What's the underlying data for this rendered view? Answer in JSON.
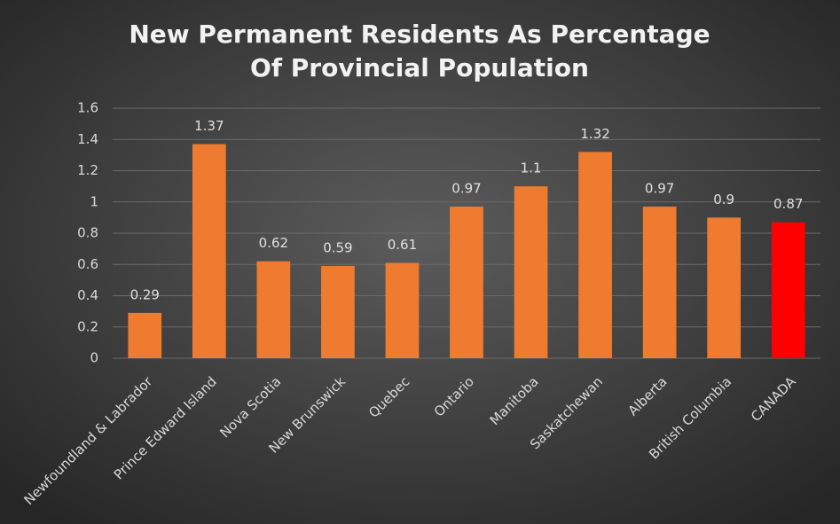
{
  "chart_data": {
    "type": "bar",
    "title": [
      "New Permanent Residents As Percentage",
      "Of Provincial Population"
    ],
    "categories": [
      "Newfoundland & Labrador",
      "Prince Edward Island",
      "Nova Scotia",
      "New Brunswick",
      "Quebec",
      "Ontario",
      "Manitoba",
      "Saskatchewan",
      "Alberta",
      "British Columbia",
      "CANADA"
    ],
    "values": [
      0.29,
      1.37,
      0.62,
      0.59,
      0.61,
      0.97,
      1.1,
      1.32,
      0.97,
      0.9,
      0.87
    ],
    "colors": [
      "#ee7b30",
      "#ee7b30",
      "#ee7b30",
      "#ee7b30",
      "#ee7b30",
      "#ee7b30",
      "#ee7b30",
      "#ee7b30",
      "#ee7b30",
      "#ee7b30",
      "#ff0000"
    ],
    "ylim": [
      0,
      1.6
    ],
    "yticks": [
      0,
      0.2,
      0.4,
      0.6,
      0.8,
      1,
      1.2,
      1.4,
      1.6
    ],
    "grid": true
  }
}
